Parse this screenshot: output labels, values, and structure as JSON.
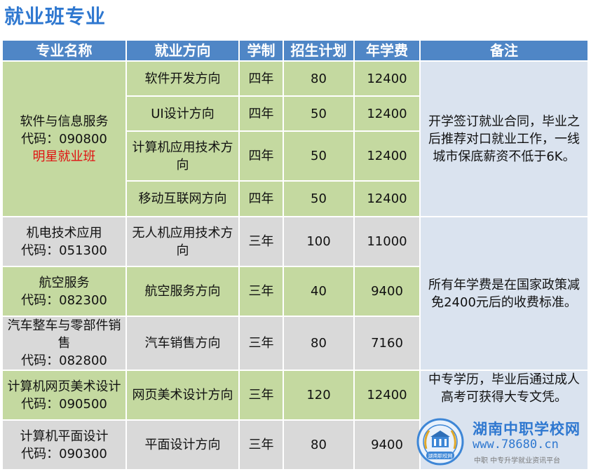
{
  "page_title": "就业班专业",
  "table": {
    "headers": [
      "专业名称",
      "就业方向",
      "学制",
      "招生计划",
      "年学费",
      "备注"
    ],
    "majors": [
      {
        "name": "软件与信息服务",
        "code": "代码：090800",
        "tag": "明星就业班"
      },
      {
        "name": "机电技术应用",
        "code": "代码：051300"
      },
      {
        "name": "航空服务",
        "code": "代码：082300"
      },
      {
        "name": "汽车整车与零部件销售",
        "code": "代码：082800"
      },
      {
        "name": "计算机网页美术设计",
        "code": "代码：090500"
      },
      {
        "name": "计算机平面设计",
        "code": "代码：090300"
      }
    ],
    "rows": [
      {
        "direction": "软件开发方向",
        "duration": "四年",
        "plan": "80",
        "fee": "12400"
      },
      {
        "direction": "UI设计方向",
        "duration": "四年",
        "plan": "50",
        "fee": "12400"
      },
      {
        "direction": "计算机应用技术方向",
        "duration": "四年",
        "plan": "50",
        "fee": "12400"
      },
      {
        "direction": "移动互联网方向",
        "duration": "四年",
        "plan": "50",
        "fee": "12400"
      },
      {
        "direction": "无人机应用技术方向",
        "duration": "三年",
        "plan": "100",
        "fee": "11000"
      },
      {
        "direction": "航空服务方向",
        "duration": "三年",
        "plan": "40",
        "fee": "9400"
      },
      {
        "direction": "汽车销售方向",
        "duration": "三年",
        "plan": "80",
        "fee": "7160"
      },
      {
        "direction": "网页美术设计方向",
        "duration": "三年",
        "plan": "120",
        "fee": "12400"
      },
      {
        "direction": "平面设计方向",
        "duration": "三年",
        "plan": "80",
        "fee": "9400"
      }
    ],
    "notes": [
      "开学签订就业合同，毕业之后推荐对口就业工作，一线城市保底薪资不低于6K。",
      "所有年学费是在国家政策减免2400元后的收费标准。",
      "中专学历，毕业后通过成人高考可获得大专文凭。"
    ]
  },
  "watermark": {
    "title": "湖南中职学校网",
    "url": "www.78680.cn",
    "subtitle": "中职  中专升学就业资讯平台",
    "logo_text": "湖南职校网"
  },
  "colors": {
    "title_blue": "#2f78d0",
    "header_blue": "#4f86c6",
    "row_green": "#c4d9a0",
    "row_gray": "#d9d9d9",
    "note_blue": "#dae3ef",
    "tag_red": "#e01010"
  }
}
